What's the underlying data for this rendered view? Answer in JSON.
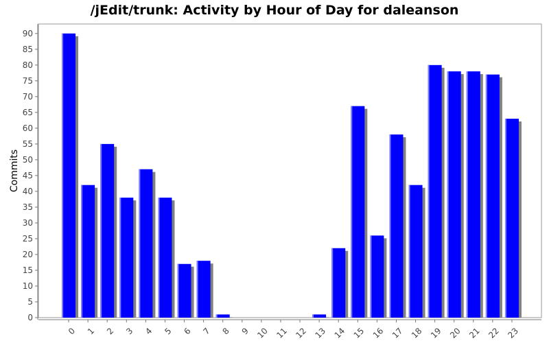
{
  "chart_data": {
    "type": "bar",
    "title": "/jEdit/trunk: Activity by Hour of Day for daleanson",
    "xlabel": "",
    "ylabel": "Commits",
    "categories": [
      "0",
      "1",
      "2",
      "3",
      "4",
      "5",
      "6",
      "7",
      "8",
      "9",
      "10",
      "11",
      "12",
      "13",
      "14",
      "15",
      "16",
      "17",
      "18",
      "19",
      "20",
      "21",
      "22",
      "23"
    ],
    "values": [
      90,
      42,
      55,
      38,
      47,
      38,
      17,
      18,
      1,
      0,
      0,
      0,
      0,
      1,
      22,
      67,
      26,
      58,
      42,
      80,
      78,
      78,
      77,
      63
    ],
    "ylim": [
      0,
      93
    ],
    "yticks": [
      0,
      5,
      10,
      15,
      20,
      25,
      30,
      35,
      40,
      45,
      50,
      55,
      60,
      65,
      70,
      75,
      80,
      85,
      90
    ],
    "grid": false,
    "legend": "none",
    "colors": {
      "bar": "#0000ff",
      "bar_shadow": "#808080",
      "plot_border": "#999999"
    }
  }
}
